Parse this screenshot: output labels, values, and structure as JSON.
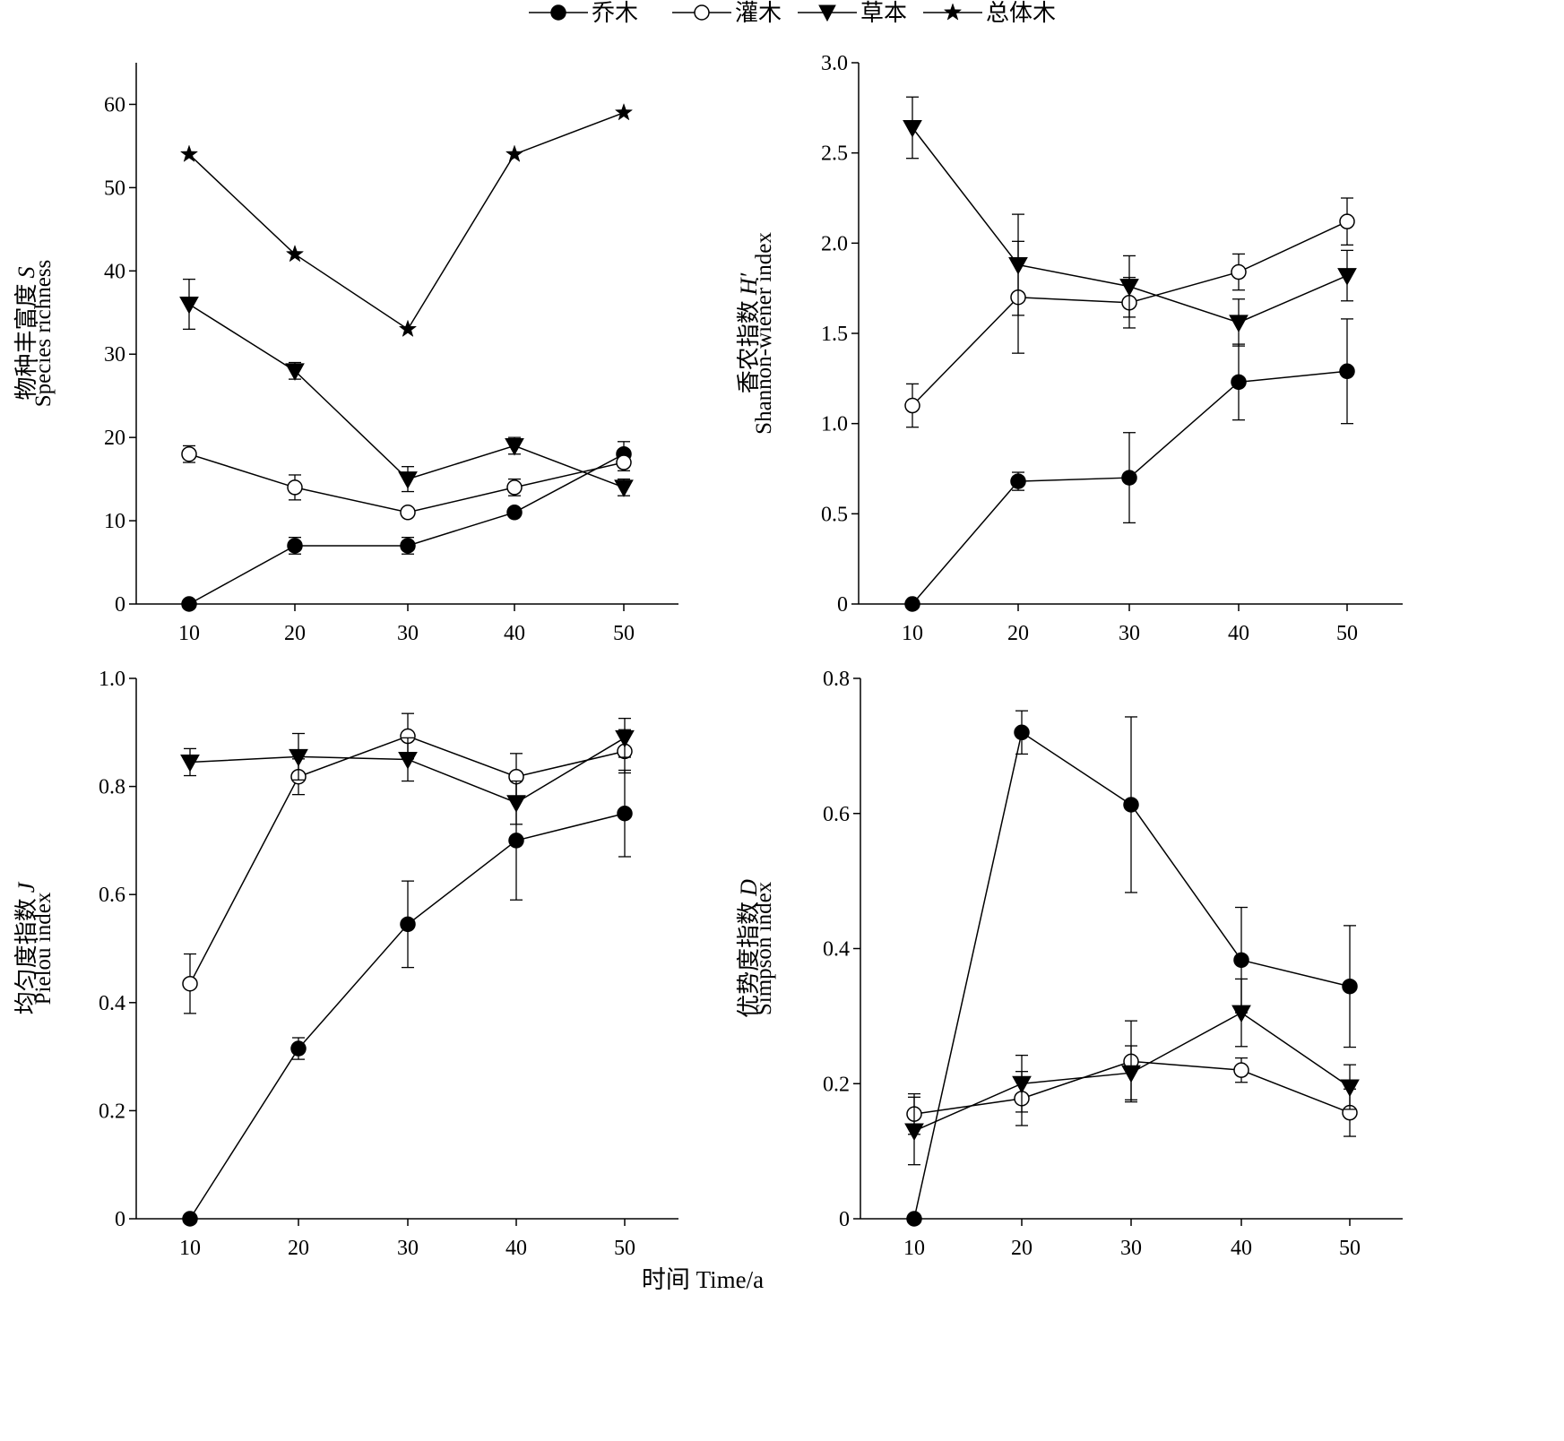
{
  "legend": [
    {
      "label": "乔木",
      "marker": "filled-circle"
    },
    {
      "label": "灌木",
      "marker": "open-circle"
    },
    {
      "label": "草本",
      "marker": "filled-triangle-down"
    },
    {
      "label": "总体木",
      "marker": "filled-star"
    }
  ],
  "xlabel": "时间 Time/a",
  "chart_data": [
    {
      "type": "line",
      "panel": "top-left",
      "x": [
        10,
        20,
        30,
        40,
        50
      ],
      "ylabel_cn": "物种丰富度",
      "ylabel_sym": "S",
      "ylabel_en": "Species richness",
      "ylim": [
        0,
        65
      ],
      "yticks": [
        0,
        10,
        20,
        30,
        40,
        50,
        60
      ],
      "ytick_labels": [
        "0",
        "10",
        "20",
        "30",
        "40",
        "50",
        "60"
      ],
      "series": [
        {
          "name": "乔木",
          "marker": "filled-circle",
          "values": [
            0,
            7,
            7,
            11,
            18
          ],
          "err": [
            0,
            1,
            1,
            0,
            1.5
          ]
        },
        {
          "name": "灌木",
          "marker": "open-circle",
          "values": [
            18,
            14,
            11,
            14,
            17
          ],
          "err": [
            1,
            1.5,
            0,
            1,
            1
          ]
        },
        {
          "name": "草本",
          "marker": "filled-triangle-down",
          "values": [
            36,
            28,
            15,
            19,
            14
          ],
          "err": [
            3,
            1,
            1.5,
            1,
            1
          ]
        },
        {
          "name": "总体木",
          "marker": "filled-star",
          "values": [
            54,
            42,
            33,
            54,
            59
          ],
          "err": [
            0,
            0,
            0,
            0,
            0
          ]
        }
      ]
    },
    {
      "type": "line",
      "panel": "top-right",
      "x": [
        10,
        20,
        30,
        40,
        50
      ],
      "ylabel_cn": "香农指数",
      "ylabel_sym": "H′",
      "ylabel_en": "Shannon-wiener index",
      "ylim": [
        0,
        3.0
      ],
      "yticks": [
        0,
        0.5,
        1.0,
        1.5,
        2.0,
        2.5,
        3.0
      ],
      "ytick_labels": [
        "0",
        "0.5",
        "1.0",
        "1.5",
        "2.0",
        "2.5",
        "3.0"
      ],
      "series": [
        {
          "name": "乔木",
          "marker": "filled-circle",
          "values": [
            0,
            0.68,
            0.7,
            1.23,
            1.29
          ],
          "err": [
            0,
            0.05,
            0.25,
            0.21,
            0.29
          ]
        },
        {
          "name": "灌木",
          "marker": "open-circle",
          "values": [
            1.1,
            1.7,
            1.67,
            1.84,
            2.12
          ],
          "err": [
            0.12,
            0.31,
            0.14,
            0.1,
            0.13
          ]
        },
        {
          "name": "草本",
          "marker": "filled-triangle-down",
          "values": [
            2.64,
            1.88,
            1.76,
            1.56,
            1.82
          ],
          "err": [
            0.17,
            0.28,
            0.17,
            0.13,
            0.14
          ]
        }
      ]
    },
    {
      "type": "line",
      "panel": "bottom-left",
      "x": [
        10,
        20,
        30,
        40,
        50
      ],
      "ylabel_cn": "均匀度指数",
      "ylabel_sym": "J",
      "ylabel_en": "Pielou index",
      "ylim": [
        0,
        1.0
      ],
      "yticks": [
        0,
        0.2,
        0.4,
        0.6,
        0.8,
        1.0
      ],
      "ytick_labels": [
        "0",
        "0.2",
        "0.4",
        "0.6",
        "0.8",
        "1.0"
      ],
      "series": [
        {
          "name": "乔木",
          "marker": "filled-circle",
          "values": [
            0,
            0.315,
            0.545,
            0.7,
            0.75
          ],
          "err": [
            0,
            0.02,
            0.08,
            0.11,
            0.08
          ]
        },
        {
          "name": "灌木",
          "marker": "open-circle",
          "values": [
            0.435,
            0.818,
            0.893,
            0.818,
            0.865
          ],
          "err": [
            0.055,
            0.033,
            0.042,
            0.043,
            0.04
          ]
        },
        {
          "name": "草本",
          "marker": "filled-triangle-down",
          "values": [
            0.845,
            0.855,
            0.85,
            0.77,
            0.89
          ],
          "err": [
            0.025,
            0.043,
            0.04,
            0.04,
            0.036
          ]
        }
      ]
    },
    {
      "type": "line",
      "panel": "bottom-right",
      "x": [
        10,
        20,
        30,
        40,
        50
      ],
      "ylabel_cn": "优势度指数",
      "ylabel_sym": "D",
      "ylabel_en": "Simpson index",
      "ylim": [
        0,
        0.8
      ],
      "yticks": [
        0,
        0.2,
        0.4,
        0.6,
        0.8
      ],
      "ytick_labels": [
        "0",
        "0.2",
        "0.4",
        "0.6",
        "0.8"
      ],
      "series": [
        {
          "name": "乔木",
          "marker": "filled-circle",
          "values": [
            0,
            0.72,
            0.613,
            0.383,
            0.344
          ],
          "err": [
            0,
            0.032,
            0.13,
            0.078,
            0.09
          ]
        },
        {
          "name": "灌木",
          "marker": "open-circle",
          "values": [
            0.155,
            0.178,
            0.233,
            0.22,
            0.157
          ],
          "err": [
            0.03,
            0.04,
            0.06,
            0.018,
            0.035
          ]
        },
        {
          "name": "草本",
          "marker": "filled-triangle-down",
          "values": [
            0.13,
            0.2,
            0.216,
            0.305,
            0.195
          ],
          "err": [
            0.05,
            0.042,
            0.04,
            0.05,
            0.033
          ]
        }
      ]
    }
  ]
}
